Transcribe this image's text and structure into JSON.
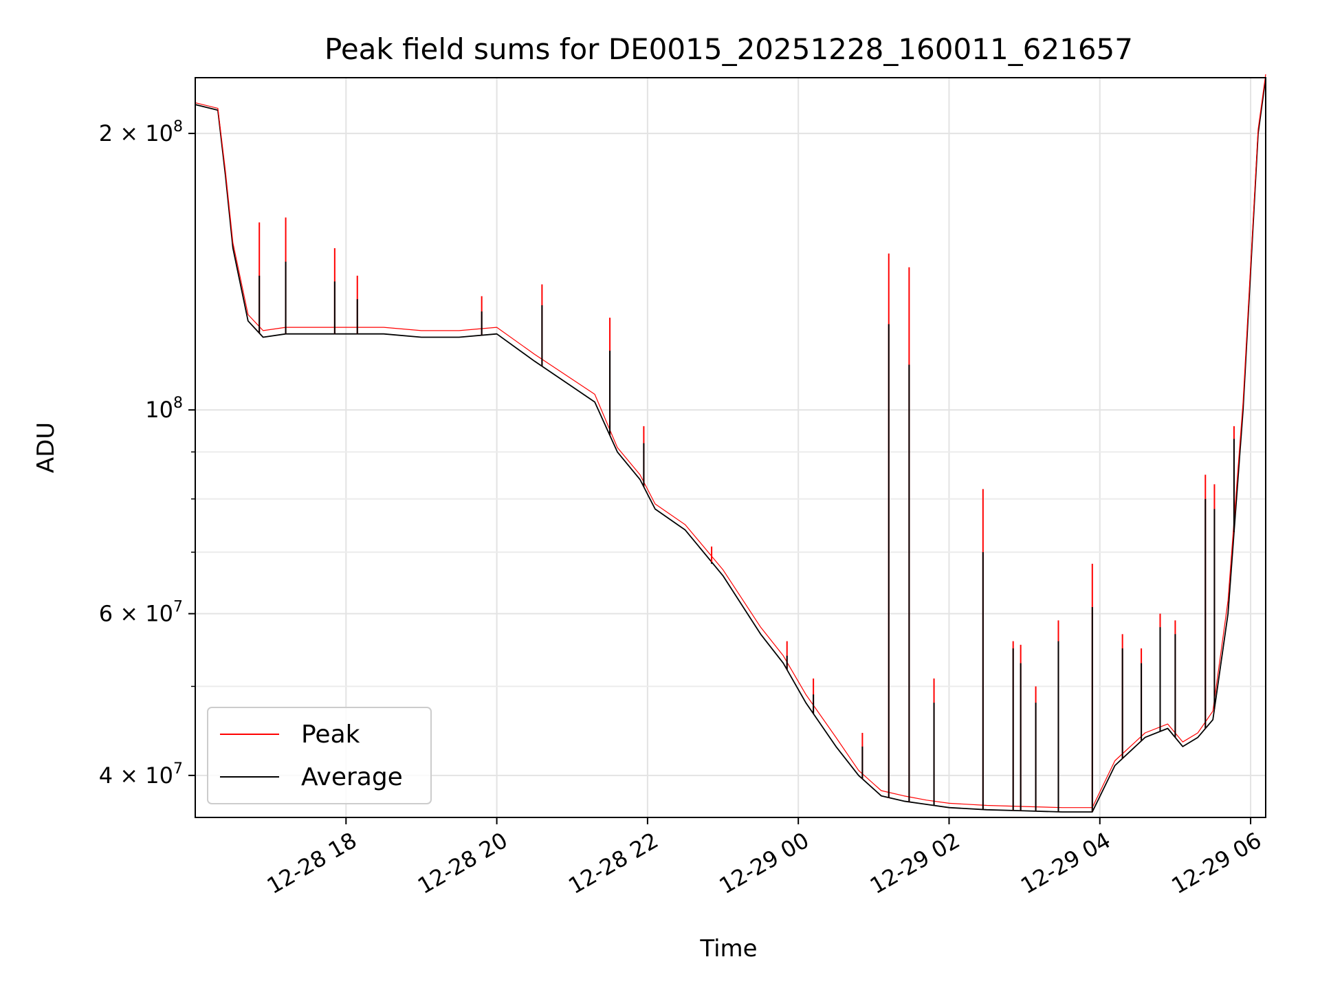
{
  "chart_data": {
    "type": "line",
    "title": "Peak field sums for DE0015_20251228_160011_621657",
    "xlabel": "Time",
    "ylabel": "ADU",
    "y_scale": "log",
    "ylim": [
      36000000,
      230000000
    ],
    "xlim_hours": [
      16.0,
      30.2
    ],
    "grid": true,
    "legend_position": "lower-left",
    "x_ticks": [
      {
        "hours": 18,
        "label": "12-28 18"
      },
      {
        "hours": 20,
        "label": "12-28 20"
      },
      {
        "hours": 22,
        "label": "12-28 22"
      },
      {
        "hours": 24,
        "label": "12-29 00"
      },
      {
        "hours": 26,
        "label": "12-29 02"
      },
      {
        "hours": 28,
        "label": "12-29 04"
      },
      {
        "hours": 30,
        "label": "12-29 06"
      }
    ],
    "y_major_ticks": [
      {
        "value": 40000000,
        "label": "4 × 10",
        "exp": "7"
      },
      {
        "value": 60000000,
        "label": "6 × 10",
        "exp": "7"
      },
      {
        "value": 100000000,
        "label": "10",
        "exp": "8"
      },
      {
        "value": 200000000,
        "label": "2 × 10",
        "exp": "8"
      }
    ],
    "y_minor_ticks": [
      50000000,
      70000000,
      80000000,
      90000000,
      300000000
    ],
    "series": [
      {
        "name": "Average",
        "color": "#000000",
        "x_hours": [
          16.0,
          16.3,
          16.4,
          16.5,
          16.7,
          16.9,
          17.2,
          17.5,
          18.0,
          18.5,
          19.0,
          19.5,
          20.0,
          20.5,
          21.0,
          21.3,
          21.6,
          21.9,
          22.1,
          22.5,
          23.0,
          23.5,
          23.8,
          24.1,
          24.5,
          24.8,
          25.1,
          25.4,
          25.7,
          26.0,
          26.5,
          27.0,
          27.5,
          27.9,
          28.2,
          28.6,
          28.9,
          29.1,
          29.3,
          29.5,
          29.7,
          29.9,
          30.1,
          30.2
        ],
        "values": [
          215000000,
          212000000,
          180000000,
          150000000,
          125000000,
          120000000,
          121000000,
          121000000,
          121000000,
          121000000,
          120000000,
          120000000,
          121000000,
          113000000,
          106000000,
          102000000,
          90000000,
          84000000,
          78000000,
          74000000,
          66000000,
          57000000,
          53000000,
          48000000,
          43000000,
          40000000,
          38000000,
          37500000,
          37200000,
          36900000,
          36700000,
          36600000,
          36500000,
          36500000,
          41000000,
          44000000,
          45000000,
          43000000,
          44000000,
          46000000,
          60000000,
          100000000,
          200000000,
          230000000
        ]
      },
      {
        "name": "Peak",
        "color": "#ff0000",
        "x_hours": [
          16.0,
          16.3,
          16.4,
          16.5,
          16.7,
          16.9,
          17.2,
          17.5,
          18.0,
          18.5,
          19.0,
          19.5,
          20.0,
          20.5,
          21.0,
          21.3,
          21.6,
          21.9,
          22.1,
          22.5,
          23.0,
          23.5,
          23.8,
          24.1,
          24.5,
          24.8,
          25.1,
          25.4,
          25.7,
          26.0,
          26.5,
          27.0,
          27.5,
          27.9,
          28.2,
          28.6,
          28.9,
          29.1,
          29.3,
          29.5,
          29.7,
          29.9,
          30.1,
          30.2
        ],
        "values": [
          216000000,
          213000000,
          182000000,
          152000000,
          127000000,
          122000000,
          123000000,
          123000000,
          123000000,
          123000000,
          122000000,
          122000000,
          123000000,
          115000000,
          108000000,
          104000000,
          91000000,
          85000000,
          79000000,
          75000000,
          67000000,
          58000000,
          54000000,
          49000000,
          44000000,
          40500000,
          38500000,
          38000000,
          37600000,
          37300000,
          37100000,
          37000000,
          36900000,
          36900000,
          41500000,
          44500000,
          45500000,
          43500000,
          44500000,
          47000000,
          62000000,
          102000000,
          202000000,
          232000000
        ]
      }
    ],
    "spikes": [
      {
        "hours": 16.85,
        "peak": 160000000,
        "average": 140000000
      },
      {
        "hours": 17.2,
        "peak": 162000000,
        "average": 145000000
      },
      {
        "hours": 17.85,
        "peak": 150000000,
        "average": 138000000
      },
      {
        "hours": 18.15,
        "peak": 140000000,
        "average": 132000000
      },
      {
        "hours": 19.8,
        "peak": 133000000,
        "average": 128000000
      },
      {
        "hours": 20.6,
        "peak": 137000000,
        "average": 130000000
      },
      {
        "hours": 21.5,
        "peak": 126000000,
        "average": 116000000
      },
      {
        "hours": 21.95,
        "peak": 96000000,
        "average": 92000000
      },
      {
        "hours": 22.85,
        "peak": 71000000,
        "average": 68000000
      },
      {
        "hours": 23.85,
        "peak": 56000000,
        "average": 54000000
      },
      {
        "hours": 24.2,
        "peak": 51000000,
        "average": 49000000
      },
      {
        "hours": 24.85,
        "peak": 44500000,
        "average": 43000000
      },
      {
        "hours": 25.2,
        "peak": 148000000,
        "average": 124000000
      },
      {
        "hours": 25.47,
        "peak": 143000000,
        "average": 112000000
      },
      {
        "hours": 25.8,
        "peak": 51000000,
        "average": 48000000
      },
      {
        "hours": 26.45,
        "peak": 82000000,
        "average": 70000000
      },
      {
        "hours": 26.85,
        "peak": 56000000,
        "average": 55000000
      },
      {
        "hours": 26.95,
        "peak": 55500000,
        "average": 53000000
      },
      {
        "hours": 27.15,
        "peak": 50000000,
        "average": 48000000
      },
      {
        "hours": 27.45,
        "peak": 59000000,
        "average": 56000000
      },
      {
        "hours": 27.9,
        "peak": 68000000,
        "average": 61000000
      },
      {
        "hours": 28.3,
        "peak": 57000000,
        "average": 55000000
      },
      {
        "hours": 28.55,
        "peak": 55000000,
        "average": 53000000
      },
      {
        "hours": 28.8,
        "peak": 60000000,
        "average": 58000000
      },
      {
        "hours": 29.0,
        "peak": 59000000,
        "average": 57000000
      },
      {
        "hours": 29.4,
        "peak": 85000000,
        "average": 80000000
      },
      {
        "hours": 29.52,
        "peak": 83000000,
        "average": 78000000
      },
      {
        "hours": 29.78,
        "peak": 96000000,
        "average": 93000000
      }
    ]
  }
}
